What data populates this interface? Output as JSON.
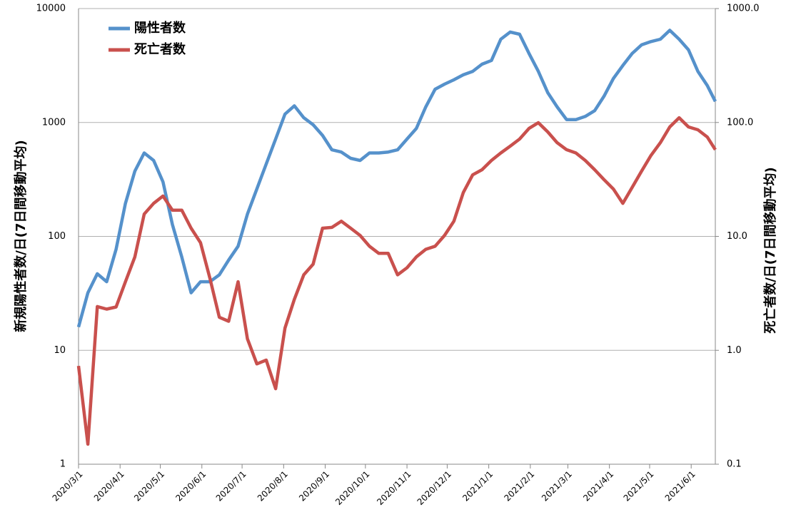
{
  "chart_data": {
    "type": "line",
    "y_label": "新規陽性者数/日(7日間移動平均)",
    "y2_label": "死亡者数/日(7日間移動平均)",
    "x": [
      "2020/3/1",
      "2020/3/8",
      "2020/3/15",
      "2020/3/22",
      "2020/3/29",
      "2020/4/5",
      "2020/4/12",
      "2020/4/19",
      "2020/4/26",
      "2020/5/3",
      "2020/5/10",
      "2020/5/17",
      "2020/5/24",
      "2020/5/31",
      "2020/6/7",
      "2020/6/14",
      "2020/6/21",
      "2020/6/28",
      "2020/7/5",
      "2020/7/12",
      "2020/7/19",
      "2020/7/26",
      "2020/8/2",
      "2020/8/9",
      "2020/8/16",
      "2020/8/23",
      "2020/8/30",
      "2020/9/6",
      "2020/9/13",
      "2020/9/20",
      "2020/9/27",
      "2020/10/4",
      "2020/10/11",
      "2020/10/18",
      "2020/10/25",
      "2020/11/1",
      "2020/11/8",
      "2020/11/15",
      "2020/11/22",
      "2020/11/29",
      "2020/12/6",
      "2020/12/13",
      "2020/12/20",
      "2020/12/27",
      "2021/1/3",
      "2021/1/10",
      "2021/1/17",
      "2021/1/24",
      "2021/1/31",
      "2021/2/7",
      "2021/2/14",
      "2021/2/21",
      "2021/2/28",
      "2021/3/7",
      "2021/3/14",
      "2021/3/21",
      "2021/3/28",
      "2021/4/4",
      "2021/4/11",
      "2021/4/18",
      "2021/4/25",
      "2021/5/2",
      "2021/5/9",
      "2021/5/16",
      "2021/5/23",
      "2021/5/30",
      "2021/6/6",
      "2021/6/13",
      "2021/6/19"
    ],
    "series": [
      {
        "name": "陽性者数",
        "color": "#5591cb",
        "values": [
          16,
          32,
          47,
          40,
          77,
          195,
          374,
          540,
          464,
          301,
          127,
          66,
          32,
          40,
          40,
          46,
          62,
          82,
          157,
          261,
          432,
          715,
          1185,
          1400,
          1100,
          955,
          770,
          575,
          550,
          485,
          464,
          540,
          540,
          550,
          575,
          715,
          887,
          1370,
          1960,
          2170,
          2370,
          2620,
          2810,
          3250,
          3500,
          5380,
          6220,
          5950,
          4040,
          2810,
          1825,
          1370,
          1060,
          1060,
          1130,
          1270,
          1700,
          2440,
          3160,
          4040,
          4800,
          5130,
          5380,
          6440,
          5380,
          4340,
          2810,
          2110,
          1530
        ]
      },
      {
        "name": "死亡者数",
        "color": "#c9504d",
        "axis": "y2",
        "values": [
          0.73,
          0.15,
          2.42,
          2.3,
          2.4,
          4.0,
          6.6,
          15.7,
          19.5,
          22.6,
          17,
          17,
          11.8,
          8.8,
          4.3,
          1.95,
          1.8,
          4.0,
          1.26,
          0.76,
          0.82,
          0.46,
          1.57,
          2.8,
          4.6,
          5.7,
          11.8,
          12,
          13.6,
          11.8,
          10.2,
          8.2,
          7.1,
          7.1,
          4.6,
          5.3,
          6.6,
          7.7,
          8.2,
          10.2,
          13.6,
          24.3,
          34.7,
          38.5,
          46.4,
          54,
          62,
          71.5,
          88.7,
          99.5,
          82.6,
          66.5,
          57.7,
          54,
          46.4,
          38.5,
          31.5,
          26,
          19.5,
          27,
          37.4,
          51.4,
          66.5,
          91.4,
          110,
          91.4,
          86.3,
          74.6,
          57.7
        ]
      }
    ],
    "xlim": [
      "2020/3/1",
      "2021/6/19"
    ],
    "xticks": [
      "2020/3/1",
      "2020/4/1",
      "2020/5/1",
      "2020/6/1",
      "2020/7/1",
      "2020/8/1",
      "2020/9/1",
      "2020/10/1",
      "2020/11/1",
      "2020/12/1",
      "2021/1/1",
      "2021/2/1",
      "2021/3/1",
      "2021/4/1",
      "2021/5/1",
      "2021/6/1"
    ],
    "ylim": [
      1,
      10000
    ],
    "yticks": [
      1,
      10,
      100,
      1000,
      10000
    ],
    "y_scale": "log",
    "y2lim": [
      0.1,
      1000
    ],
    "y2ticks": [
      0.1,
      {
        "value": 1,
        "label": "1.0"
      },
      {
        "value": 10,
        "label": "10.0"
      },
      {
        "value": 100,
        "label": "100.0"
      },
      {
        "value": 1000,
        "label": "1000.0"
      }
    ],
    "y2_scale": "log",
    "grid": true,
    "legend": "upper left"
  }
}
